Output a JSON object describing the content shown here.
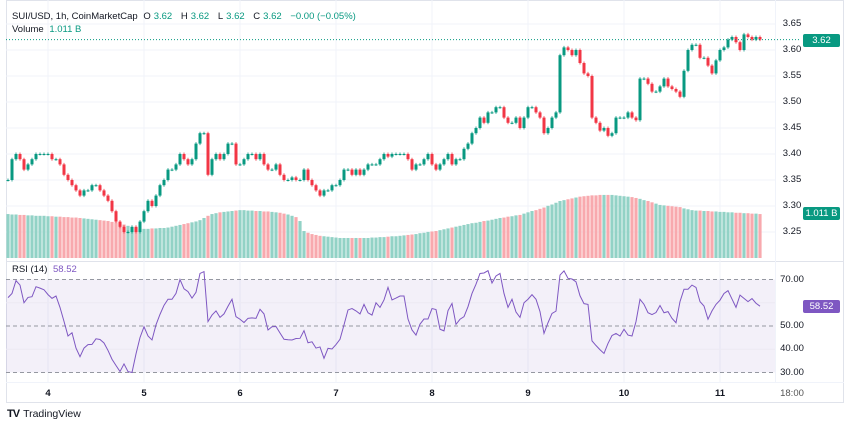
{
  "header": {
    "symbol": "SUI/USD, 1h, CoinMarketCap",
    "open_label": "O",
    "open": "3.62",
    "high_label": "H",
    "high": "3.62",
    "low_label": "L",
    "low": "3.62",
    "close_label": "C",
    "close": "3.62",
    "change": "−0.00 (−0.05%)",
    "volume_label": "Volume",
    "volume": "1.011 B"
  },
  "rsi_header": {
    "label": "RSI (14)",
    "value": "58.52"
  },
  "price_tag": "3.62",
  "volume_tag": "1.011 B",
  "rsi_tag": "58.52",
  "logo_text": "TradingView",
  "colors": {
    "up": "#089981",
    "down": "#f23645",
    "rsi": "#7e57c2",
    "volume_up": "#92d2c6",
    "volume_down": "#f8a9ae"
  },
  "chart_data": [
    {
      "type": "candlestick",
      "interval": "1h",
      "y_ticks": [
        "3.65",
        "3.60",
        "3.55",
        "3.50",
        "3.45",
        "3.40",
        "3.35",
        "3.30",
        "3.25"
      ],
      "ylim": [
        3.22,
        3.66
      ],
      "x_ticks": [
        "4",
        "5",
        "6",
        "7",
        "8",
        "9",
        "10",
        "11",
        "18:00"
      ],
      "last_price": 3.62,
      "close": [
        3.35,
        3.39,
        3.4,
        3.39,
        3.37,
        3.38,
        3.39,
        3.4,
        3.4,
        3.4,
        3.4,
        3.39,
        3.39,
        3.38,
        3.36,
        3.35,
        3.34,
        3.33,
        3.32,
        3.33,
        3.33,
        3.34,
        3.34,
        3.33,
        3.32,
        3.31,
        3.29,
        3.27,
        3.26,
        3.25,
        3.25,
        3.26,
        3.25,
        3.27,
        3.29,
        3.31,
        3.3,
        3.32,
        3.34,
        3.35,
        3.37,
        3.37,
        3.38,
        3.4,
        3.39,
        3.38,
        3.39,
        3.42,
        3.44,
        3.44,
        3.36,
        3.39,
        3.4,
        3.39,
        3.4,
        3.42,
        3.42,
        3.38,
        3.38,
        3.39,
        3.4,
        3.4,
        3.39,
        3.4,
        3.38,
        3.37,
        3.37,
        3.38,
        3.36,
        3.35,
        3.35,
        3.355,
        3.35,
        3.35,
        3.37,
        3.35,
        3.34,
        3.33,
        3.32,
        3.33,
        3.33,
        3.34,
        3.34,
        3.35,
        3.37,
        3.37,
        3.36,
        3.37,
        3.36,
        3.37,
        3.38,
        3.38,
        3.38,
        3.39,
        3.4,
        3.395,
        3.4,
        3.4,
        3.4,
        3.4,
        3.39,
        3.37,
        3.38,
        3.38,
        3.39,
        3.4,
        3.38,
        3.37,
        3.38,
        3.39,
        3.4,
        3.38,
        3.39,
        3.39,
        3.41,
        3.42,
        3.44,
        3.45,
        3.47,
        3.46,
        3.48,
        3.48,
        3.49,
        3.49,
        3.47,
        3.46,
        3.46,
        3.47,
        3.45,
        3.47,
        3.49,
        3.49,
        3.48,
        3.47,
        3.44,
        3.45,
        3.47,
        3.48,
        3.59,
        3.605,
        3.6,
        3.59,
        3.6,
        3.575,
        3.555,
        3.55,
        3.47,
        3.46,
        3.445,
        3.45,
        3.435,
        3.44,
        3.47,
        3.47,
        3.47,
        3.48,
        3.47,
        3.465,
        3.545,
        3.545,
        3.535,
        3.52,
        3.52,
        3.53,
        3.545,
        3.53,
        3.525,
        3.52,
        3.51,
        3.56,
        3.6,
        3.61,
        3.61,
        3.585,
        3.585,
        3.57,
        3.555,
        3.58,
        3.6,
        3.605,
        3.62,
        3.625,
        3.615,
        3.6,
        3.63,
        3.625,
        3.62,
        3.625,
        3.62
      ],
      "volume_b": [
        1.01,
        1.0,
        1.0,
        0.99,
        0.99,
        0.98,
        0.98,
        0.97,
        0.97,
        0.97,
        0.96,
        0.96,
        0.95,
        0.95,
        0.94,
        0.94,
        0.93,
        0.93,
        0.92,
        0.91,
        0.9,
        0.89,
        0.88,
        0.87,
        0.86,
        0.85,
        0.83,
        0.82,
        0.8,
        0.77,
        0.74,
        0.71,
        0.69,
        0.67,
        0.67,
        0.67,
        0.68,
        0.68,
        0.69,
        0.69,
        0.7,
        0.72,
        0.74,
        0.76,
        0.78,
        0.8,
        0.82,
        0.84,
        0.87,
        0.92,
        0.97,
        1.01,
        1.03,
        1.05,
        1.06,
        1.07,
        1.08,
        1.09,
        1.1,
        1.1,
        1.09,
        1.09,
        1.08,
        1.08,
        1.07,
        1.07,
        1.06,
        1.05,
        1.04,
        1.02,
        1.0,
        0.97,
        0.94,
        0.85,
        0.62,
        0.58,
        0.55,
        0.53,
        0.51,
        0.5,
        0.49,
        0.48,
        0.47,
        0.46,
        0.46,
        0.46,
        0.46,
        0.46,
        0.46,
        0.46,
        0.46,
        0.47,
        0.47,
        0.48,
        0.48,
        0.49,
        0.5,
        0.5,
        0.51,
        0.52,
        0.53,
        0.54,
        0.55,
        0.57,
        0.58,
        0.6,
        0.61,
        0.62,
        0.64,
        0.66,
        0.68,
        0.7,
        0.72,
        0.74,
        0.76,
        0.78,
        0.8,
        0.81,
        0.83,
        0.85,
        0.86,
        0.88,
        0.9,
        0.92,
        0.93,
        0.95,
        0.96,
        0.98,
        0.99,
        1.02,
        1.05,
        1.08,
        1.1,
        1.13,
        1.16,
        1.2,
        1.23,
        1.27,
        1.31,
        1.33,
        1.35,
        1.37,
        1.39,
        1.41,
        1.42,
        1.43,
        1.44,
        1.44,
        1.45,
        1.45,
        1.45,
        1.45,
        1.44,
        1.43,
        1.42,
        1.41,
        1.4,
        1.38,
        1.36,
        1.33,
        1.31,
        1.28,
        1.25,
        1.22,
        1.21,
        1.2,
        1.19,
        1.18,
        1.17,
        1.14,
        1.12,
        1.1,
        1.09,
        1.09,
        1.08,
        1.08,
        1.07,
        1.07,
        1.06,
        1.06,
        1.05,
        1.05,
        1.04,
        1.04,
        1.03,
        1.03,
        1.02,
        1.02,
        1.01
      ]
    },
    {
      "type": "line",
      "title": "RSI (14)",
      "y_ticks": [
        "70.00",
        "50.00",
        "40.00",
        "30.00"
      ],
      "bands": [
        30,
        50,
        70
      ],
      "ylim": [
        26,
        76
      ],
      "values": [
        62.2,
        64,
        69.5,
        67.6,
        60,
        62.3,
        62.6,
        66.9,
        66.3,
        65.6,
        63.5,
        61.9,
        62.9,
        58,
        52,
        45.7,
        47.1,
        40.5,
        36.8,
        40.5,
        42,
        42.1,
        44.5,
        44.2,
        42.7,
        39.5,
        35.7,
        33,
        30.4,
        33.7,
        30.4,
        30,
        38,
        45,
        49.7,
        45.7,
        44,
        50.5,
        55,
        58.9,
        61.5,
        61.5,
        64,
        70,
        66,
        64.8,
        62,
        64.5,
        72.6,
        73.4,
        51.9,
        54.7,
        56.5,
        53.7,
        55.2,
        58.5,
        61.5,
        54,
        52.9,
        51.5,
        53.3,
        53.5,
        53.3,
        57.2,
        55.2,
        48.3,
        49.7,
        49.8,
        47,
        44.3,
        44.1,
        44,
        44.6,
        44.7,
        48,
        42.8,
        43.2,
        40.5,
        41,
        36.1,
        40.4,
        40.1,
        42,
        44.3,
        50.5,
        56.9,
        57.5,
        56.5,
        55.2,
        59.3,
        55.7,
        54.7,
        60,
        58,
        61.2,
        66.6,
        61.2,
        62,
        62.9,
        62.9,
        53,
        48.3,
        46.1,
        50.8,
        53,
        53,
        57.5,
        57.1,
        48.6,
        47.9,
        56.6,
        59.7,
        50.7,
        52.9,
        54,
        58.3,
        64,
        68,
        72.6,
        72.8,
        73.8,
        68.5,
        71.5,
        72.6,
        64,
        58,
        61.5,
        56,
        53.7,
        60,
        61.5,
        63.5,
        61.5,
        56.2,
        46.8,
        51.4,
        55.4,
        56.4,
        71.9,
        73.7,
        70.5,
        70.2,
        69,
        63,
        59.6,
        59.3,
        43.6,
        41.6,
        39.8,
        38.2,
        42.5,
        45.9,
        46.8,
        45.7,
        48.6,
        46.1,
        45.7,
        51.9,
        61.5,
        59.3,
        55.7,
        54.9,
        55.8,
        58.8,
        55.7,
        56.2,
        53.3,
        51.4,
        60.5,
        65.8,
        65.8,
        67.6,
        66.6,
        60.5,
        58.6,
        52.9,
        56.5,
        59.3,
        61.1,
        64,
        65.2,
        61.6,
        58,
        63.3,
        61.9,
        60.5,
        61.8,
        59.8,
        58.52
      ]
    }
  ]
}
